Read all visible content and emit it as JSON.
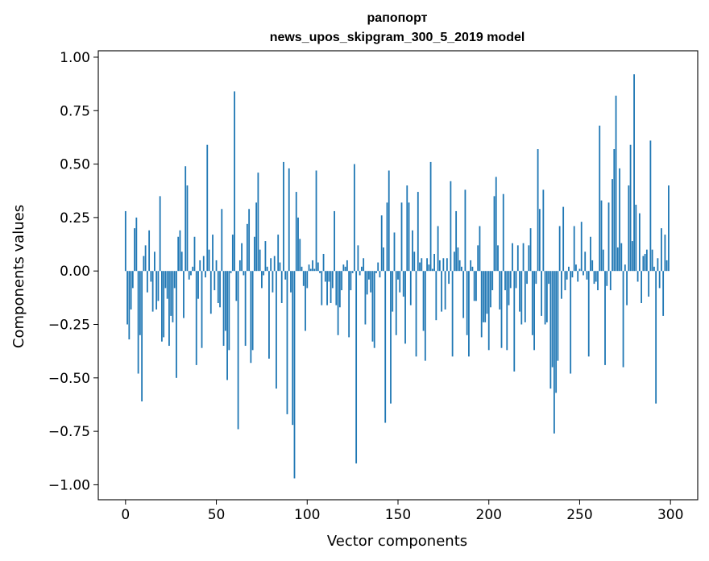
{
  "chart_data": {
    "type": "bar",
    "title": "рапопорт",
    "subtitle": "news_upos_skipgram_300_5_2019 model",
    "xlabel": "Vector components",
    "ylabel": "Components values",
    "xlim": [
      -15,
      315
    ],
    "ylim": [
      -1.07,
      1.03
    ],
    "xticks": [
      0,
      50,
      100,
      150,
      200,
      250,
      300
    ],
    "xtick_labels": [
      "0",
      "50",
      "100",
      "150",
      "200",
      "250",
      "300"
    ],
    "yticks": [
      1.0,
      0.75,
      0.5,
      0.25,
      0.0,
      -0.25,
      -0.5,
      -0.75,
      -1.0
    ],
    "ytick_labels": [
      "1.00",
      "0.75",
      "0.50",
      "0.25",
      "0.00",
      "−0.25",
      "−0.50",
      "−0.75",
      "−1.00"
    ],
    "bar_color": "#1f77b4",
    "values": [
      0.28,
      -0.25,
      -0.32,
      -0.18,
      -0.08,
      0.2,
      0.25,
      -0.48,
      -0.3,
      -0.61,
      0.07,
      0.12,
      -0.1,
      0.19,
      -0.05,
      -0.19,
      0.09,
      -0.18,
      -0.14,
      0.35,
      -0.33,
      -0.31,
      -0.08,
      -0.13,
      -0.35,
      -0.21,
      -0.24,
      -0.08,
      -0.5,
      0.16,
      0.19,
      0.09,
      -0.22,
      0.49,
      0.4,
      -0.04,
      -0.02,
      0.02,
      0.16,
      -0.44,
      -0.13,
      0.05,
      -0.36,
      0.07,
      -0.03,
      0.59,
      0.1,
      -0.2,
      0.17,
      -0.09,
      0.05,
      -0.15,
      -0.17,
      0.29,
      -0.35,
      -0.28,
      -0.51,
      -0.37,
      -0.01,
      0.17,
      0.84,
      -0.14,
      -0.74,
      0.05,
      0.13,
      -0.02,
      -0.35,
      0.22,
      0.29,
      -0.43,
      -0.37,
      0.16,
      0.32,
      0.46,
      0.1,
      -0.08,
      -0.02,
      0.14,
      0.02,
      -0.41,
      0.06,
      -0.1,
      0.07,
      -0.55,
      0.17,
      0.04,
      -0.15,
      0.51,
      -0.04,
      -0.67,
      0.48,
      -0.1,
      -0.72,
      -0.97,
      0.37,
      0.25,
      0.15,
      0.02,
      -0.07,
      -0.28,
      -0.08,
      0.03,
      0.01,
      0.05,
      0.01,
      0.47,
      0.04,
      -0.01,
      -0.16,
      0.08,
      -0.05,
      -0.16,
      -0.05,
      -0.15,
      -0.08,
      0.28,
      -0.16,
      -0.3,
      -0.17,
      -0.09,
      0.03,
      0.02,
      0.05,
      -0.31,
      -0.09,
      -0.01,
      0.5,
      -0.9,
      0.12,
      -0.02,
      0.02,
      0.06,
      -0.25,
      -0.11,
      -0.04,
      -0.1,
      -0.33,
      -0.36,
      -0.01,
      0.04,
      -0.03,
      0.26,
      0.11,
      -0.71,
      0.32,
      0.47,
      -0.62,
      -0.19,
      0.18,
      -0.3,
      -0.04,
      -0.1,
      0.32,
      -0.12,
      -0.34,
      0.4,
      0.32,
      -0.16,
      0.19,
      0.09,
      -0.4,
      0.37,
      0.04,
      0.06,
      -0.28,
      -0.42,
      0.06,
      0.03,
      0.51,
      0.01,
      0.08,
      -0.23,
      0.21,
      0.05,
      -0.19,
      0.06,
      -0.18,
      0.06,
      -0.06,
      0.42,
      -0.4,
      0.09,
      0.28,
      0.11,
      0.05,
      0.02,
      -0.22,
      0.38,
      -0.3,
      -0.4,
      0.05,
      0.02,
      -0.14,
      -0.14,
      0.12,
      0.21,
      -0.31,
      -0.24,
      -0.24,
      -0.2,
      -0.37,
      -0.17,
      -0.09,
      0.35,
      0.44,
      0.12,
      -0.18,
      -0.36,
      0.36,
      -0.09,
      -0.37,
      -0.16,
      -0.08,
      0.13,
      -0.47,
      -0.08,
      0.12,
      -0.19,
      -0.25,
      0.13,
      -0.24,
      -0.06,
      0.12,
      0.2,
      -0.3,
      -0.37,
      -0.06,
      0.57,
      0.29,
      -0.21,
      0.38,
      -0.25,
      -0.24,
      -0.06,
      -0.55,
      -0.45,
      -0.76,
      -0.57,
      -0.42,
      0.21,
      -0.13,
      0.3,
      -0.09,
      -0.04,
      0.02,
      -0.48,
      -0.03,
      0.21,
      0.03,
      -0.05,
      0.01,
      0.23,
      -0.02,
      0.09,
      -0.04,
      -0.4,
      0.16,
      0.05,
      -0.06,
      -0.05,
      -0.09,
      0.68,
      0.33,
      0.1,
      -0.44,
      -0.07,
      0.32,
      -0.09,
      0.43,
      0.57,
      0.82,
      0.11,
      0.48,
      0.13,
      -0.45,
      0.03,
      -0.16,
      0.4,
      0.59,
      0.14,
      0.92,
      0.31,
      -0.05,
      0.27,
      -0.15,
      0.07,
      0.08,
      0.1,
      -0.12,
      0.61,
      0.1,
      0.02,
      -0.62,
      0.06,
      -0.08,
      0.2,
      -0.21,
      0.17,
      0.05,
      0.4
    ]
  }
}
